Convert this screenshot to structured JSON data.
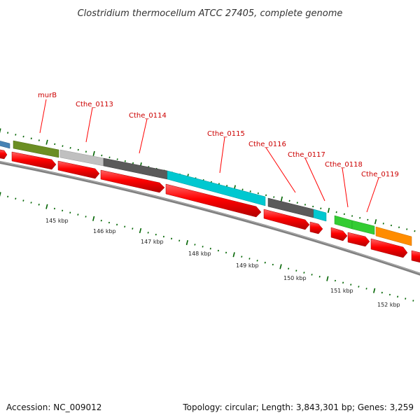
{
  "title": "Clostridium thermocellum ATCC 27405, complete genome",
  "footer": {
    "accession": "Accession: NC_009012",
    "summary": "Topology: circular; Length: 3,843,301 bp; Genes: 3,259"
  },
  "gene_labels": [
    {
      "id": "murB",
      "text": "murB"
    },
    {
      "id": "cthe-0113",
      "text": "Cthe_0113"
    },
    {
      "id": "cthe-0114",
      "text": "Cthe_0114"
    },
    {
      "id": "cthe-0115",
      "text": "Cthe_0115"
    },
    {
      "id": "cthe-0116",
      "text": "Cthe_0116"
    },
    {
      "id": "cthe-0117",
      "text": "Cthe_0117"
    },
    {
      "id": "cthe-0118",
      "text": "Cthe_0118"
    },
    {
      "id": "cthe-0119",
      "text": "Cthe_0119"
    }
  ],
  "kbp_labels": [
    "145 kbp",
    "146 kbp",
    "147 kbp",
    "148 kbp",
    "149 kbp",
    "150 kbp",
    "151 kbp",
    "152 kbp"
  ],
  "colors": {
    "cds": "#ff0000",
    "olive": "#6b8e23",
    "light-gray": "#c0c0c0",
    "dark-gray": "#5a5a5a",
    "cyan": "#00c8d0",
    "green": "#33cc33",
    "orange": "#ff8c00",
    "blue": "#4682b4",
    "backbone": "#808080",
    "ticks": "#006400"
  }
}
